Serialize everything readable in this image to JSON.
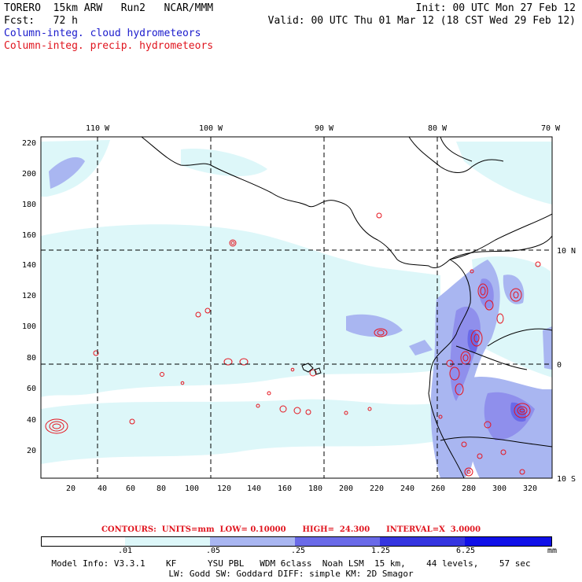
{
  "header": {
    "model": "TORERO  15km ARW   Run2   NCAR/MMM",
    "init": "Init: 00 UTC Mon 27 Feb 12",
    "fcst": "Fcst:   72 h",
    "valid": "Valid: 00 UTC Thu 01 Mar 12 (18 CST Wed 29 Feb 12)",
    "field1": "Column-integ. cloud hydrometeors",
    "field2": "Column-integ. precip. hydrometeors"
  },
  "colors": {
    "land": "#ffffff",
    "shade1": "#ddf7f9",
    "shade2": "#a9b6f1",
    "shade3": "#8f8fec",
    "shade4": "#6a6ae8",
    "shade5": "#3535e0",
    "shade6": "#1010e8",
    "contour": "#e6141e",
    "field1_text": "#1a1acc",
    "field2_text": "#e0141e"
  },
  "map": {
    "lon_labels": [
      "110 W",
      "100 W",
      "90 W",
      "80 W",
      "70 W"
    ],
    "lat_labels": [
      "10 N",
      "0",
      "10 S"
    ],
    "x_ticks": [
      "20",
      "40",
      "60",
      "80",
      "100",
      "120",
      "140",
      "160",
      "180",
      "200",
      "220",
      "240",
      "260",
      "280",
      "300",
      "320"
    ],
    "y_ticks": [
      "20",
      "40",
      "60",
      "80",
      "100",
      "120",
      "140",
      "160",
      "180",
      "200",
      "220"
    ]
  },
  "contours_info": "CONTOURS:  UNITS=mm  LOW= 0.10000      HIGH=  24.300      INTERVAL=X  3.0000",
  "colorbar": {
    "labels": [
      ".01",
      ".05",
      ".25",
      "1.25",
      "6.25"
    ],
    "units": "mm"
  },
  "model_info": {
    "line1": "Model Info: V3.3.1    KF      YSU PBL   WDM 6class  Noah LSM  15 km,    44 levels,    57 sec",
    "line2": "LW: Godd SW: Goddard DIFF: simple KM: 2D Smagor"
  }
}
